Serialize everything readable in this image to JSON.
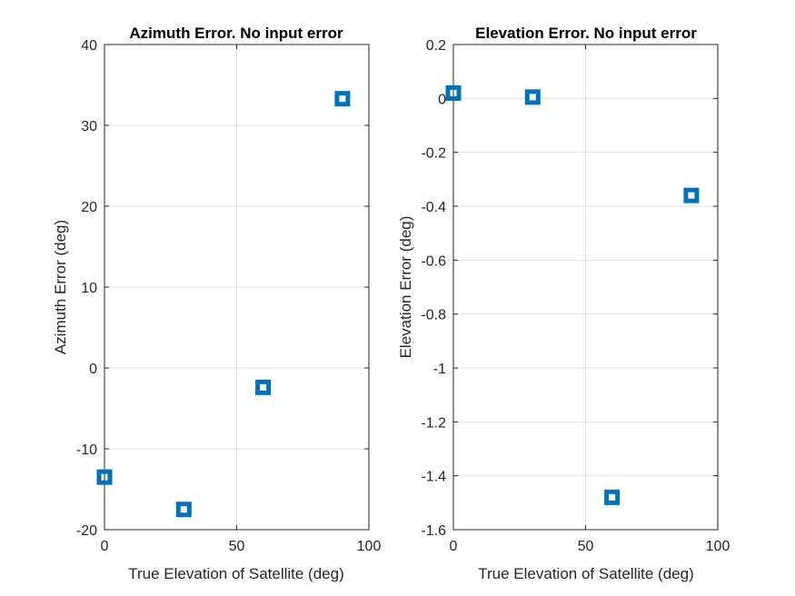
{
  "chart_data": [
    {
      "type": "scatter",
      "title": "Azimuth Error. No input error",
      "xlabel": "True Elevation of Satellite (deg)",
      "ylabel": "Azimuth Error (deg)",
      "xlim": [
        0,
        100
      ],
      "ylim": [
        -20,
        40
      ],
      "xticks": [
        0,
        50,
        100
      ],
      "yticks": [
        -20,
        -10,
        0,
        10,
        20,
        30,
        40
      ],
      "grid": true,
      "series": [
        {
          "x": [
            0,
            30,
            60,
            90
          ],
          "y": [
            -13.5,
            -17.5,
            -2.4,
            33.3
          ]
        }
      ]
    },
    {
      "type": "scatter",
      "title": "Elevation Error. No input error",
      "xlabel": "True Elevation of Satellite (deg)",
      "ylabel": "Elevation Error (deg)",
      "xlim": [
        0,
        100
      ],
      "ylim": [
        -1.6,
        0.2
      ],
      "xticks": [
        0,
        50,
        100
      ],
      "yticks": [
        -1.6,
        -1.4,
        -1.2,
        -1,
        -0.8,
        -0.6,
        -0.4,
        -0.2,
        0,
        0.2
      ],
      "grid": true,
      "series": [
        {
          "x": [
            0,
            30,
            60,
            90
          ],
          "y": [
            0.02,
            0.005,
            -1.48,
            -0.36
          ]
        }
      ]
    }
  ],
  "style": {
    "marker_color": "#0072BD",
    "grid_color": "#e0e0e0",
    "axis_color": "#262626"
  }
}
